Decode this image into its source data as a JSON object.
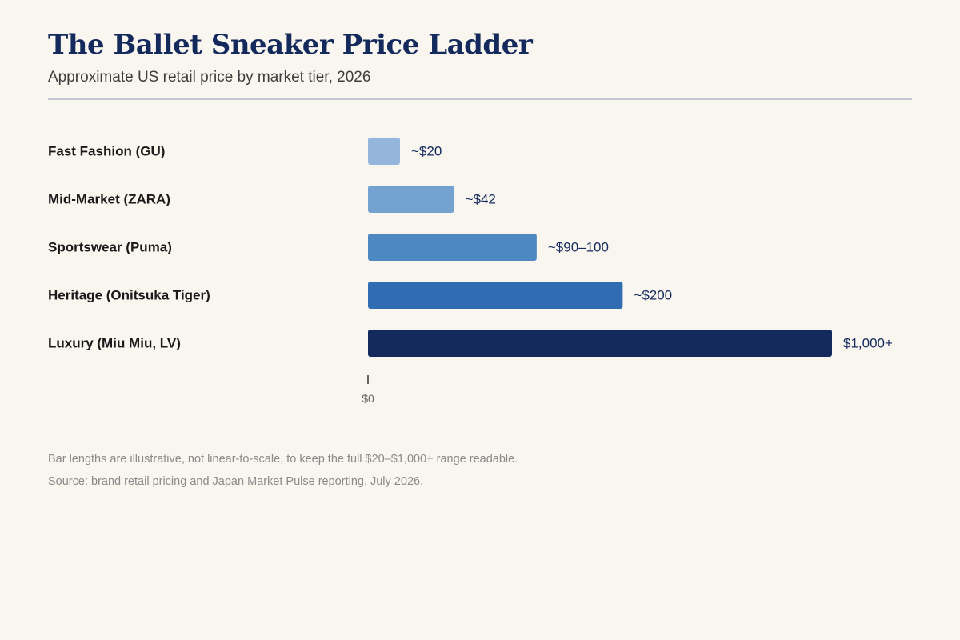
{
  "chart_data": {
    "type": "bar",
    "orientation": "horizontal",
    "title": "The Ballet Sneaker Price Ladder",
    "subtitle": "Approximate US retail price by market tier, 2026",
    "categories": [
      "Fast Fashion (GU)",
      "Mid-Market (ZARA)",
      "Sportswear (Puma)",
      "Heritage (Onitsuka Tiger)",
      "Luxury (Miu Miu, LV)"
    ],
    "values": [
      20,
      42,
      95,
      200,
      1000
    ],
    "value_labels": [
      "~$20",
      "~$42",
      "~$90–100",
      "~$200",
      "$1,000+"
    ],
    "colors": [
      "#94b6dc",
      "#74a2d0",
      "#4d88c2",
      "#2f6cb2",
      "#142a5c"
    ],
    "x_ticks": [
      "$0"
    ],
    "xlabel": "",
    "ylabel": "",
    "grid": false,
    "legend": "none",
    "notes": [
      "Bar lengths are illustrative, not linear-to-scale, to keep the full $20–$1,000+ range readable.",
      "Source: brand retail pricing and Japan Market Pulse reporting, July 2026."
    ]
  }
}
